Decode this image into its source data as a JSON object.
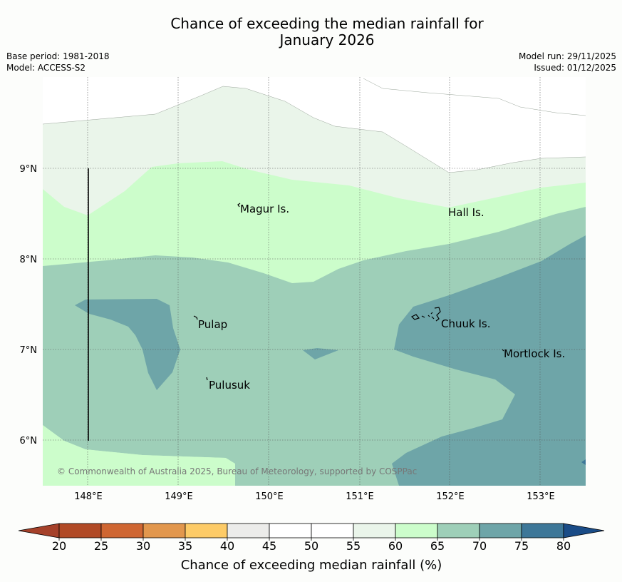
{
  "header": {
    "title_line1": "Chance of exceeding the median rainfall for",
    "title_line2": "January 2026",
    "base_period": "Base period: 1981-2018",
    "model": "Model: ACCESS-S2",
    "model_run": "Model run: 29/11/2025",
    "issued": "Issued: 01/12/2025"
  },
  "map": {
    "lat_labels": [
      "9°N",
      "8°N",
      "7°N",
      "6°N"
    ],
    "lon_labels": [
      "148°E",
      "149°E",
      "150°E",
      "151°E",
      "152°E",
      "153°E"
    ],
    "places": {
      "magur": "Magur Is.",
      "hall": "Hall Is.",
      "pulap": "Pulap",
      "chuuk": "Chuuk Is.",
      "mortlock": "Mortlock Is.",
      "pulusuk": "Pulusuk"
    },
    "copyright": "© Commonwealth of Australia 2025, Bureau of Meteorology, supported by COSPPac"
  },
  "colorbar": {
    "label": "Chance of exceeding median rainfall (%)",
    "ticks": [
      "20",
      "25",
      "30",
      "35",
      "40",
      "45",
      "50",
      "55",
      "60",
      "65",
      "70",
      "75",
      "80"
    ],
    "colors": [
      "#a5412a",
      "#b14a26",
      "#cf6632",
      "#e2974d",
      "#fdcb67",
      "#ececea",
      "#ffffff",
      "#ffffff",
      "#eaf5ea",
      "#ccfdcb",
      "#9ecfb8",
      "#6ea5a8",
      "#3d7798",
      "#1a4c87"
    ]
  }
}
